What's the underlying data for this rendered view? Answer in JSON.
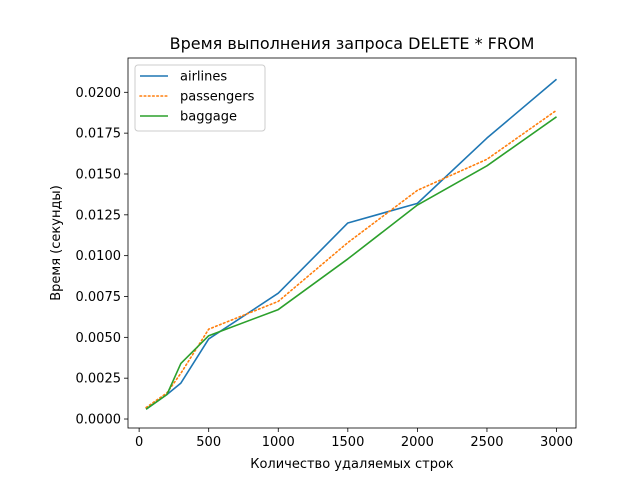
{
  "chart_data": {
    "type": "line",
    "title": "Время выполнения запроса DELETE * FROM",
    "xlabel": "Количество удаляемых строк",
    "ylabel": "Время (секунды)",
    "xlim": [
      -80,
      3140
    ],
    "ylim": [
      -0.00055,
      0.0221
    ],
    "xticks": [
      0,
      500,
      1000,
      1500,
      2000,
      2500,
      3000
    ],
    "xtick_labels": [
      "0",
      "500",
      "1000",
      "1500",
      "2000",
      "2500",
      "3000"
    ],
    "yticks": [
      0.0,
      0.0025,
      0.005,
      0.0075,
      0.01,
      0.0125,
      0.015,
      0.0175,
      0.02
    ],
    "ytick_labels": [
      "0.0000",
      "0.0025",
      "0.0050",
      "0.0075",
      "0.0100",
      "0.0125",
      "0.0150",
      "0.0175",
      "0.0200"
    ],
    "grid": false,
    "legend_position": "top-left",
    "x": [
      50,
      200,
      300,
      500,
      1000,
      1500,
      2000,
      2500,
      3000
    ],
    "series": [
      {
        "name": "airlines",
        "color": "#1f77b4",
        "style": "solid",
        "values": [
          0.0006,
          0.0015,
          0.0022,
          0.0049,
          0.0077,
          0.012,
          0.0132,
          0.0172,
          0.0208
        ]
      },
      {
        "name": "passengers",
        "color": "#ff7f0e",
        "style": "dotted",
        "values": [
          0.0007,
          0.0016,
          0.0028,
          0.0055,
          0.0072,
          0.0108,
          0.014,
          0.0159,
          0.0189
        ]
      },
      {
        "name": "baggage",
        "color": "#2ca02c",
        "style": "solid",
        "values": [
          0.0006,
          0.0015,
          0.0034,
          0.0051,
          0.0067,
          0.0098,
          0.0131,
          0.0155,
          0.0185
        ]
      }
    ]
  }
}
